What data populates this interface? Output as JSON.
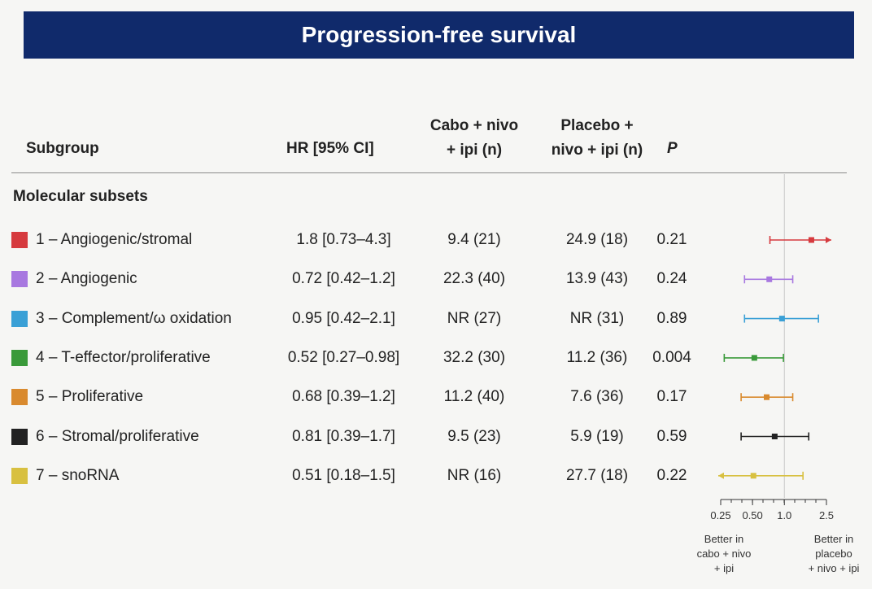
{
  "title": "Progression-free survival",
  "headers": {
    "subgroup": "Subgroup",
    "hr": "HR [95% CI]",
    "cabo_line1": "Cabo + nivo",
    "cabo_line2": "+ ipi (n)",
    "placebo_line1": "Placebo +",
    "placebo_line2": "nivo + ipi (n)",
    "p": "P"
  },
  "section_label": "Molecular subsets",
  "rows": [
    {
      "name": "1 – Angiogenic/stromal",
      "hr": "1.8 [0.73–4.3]",
      "cabo": "9.4 (21)",
      "placebo": "24.9 (18)",
      "p": "0.21",
      "color": "#d63a3e"
    },
    {
      "name": "2 – Angiogenic",
      "hr": "0.72 [0.42–1.2]",
      "cabo": "22.3 (40)",
      "placebo": "13.9 (43)",
      "p": "0.24",
      "color": "#a878e0"
    },
    {
      "name": "3 – Complement/ω oxidation",
      "hr": "0.95 [0.42–2.1]",
      "cabo": "NR (27)",
      "placebo": "NR (31)",
      "p": "0.89",
      "color": "#3aa0d6"
    },
    {
      "name": "4 – T-effector/proliferative",
      "hr": "0.52 [0.27–0.98]",
      "cabo": "32.2 (30)",
      "placebo": "11.2 (36)",
      "p": "0.004",
      "color": "#3a9a3a"
    },
    {
      "name": "5 – Proliferative",
      "hr": "0.68 [0.39–1.2]",
      "cabo": "11.2 (40)",
      "placebo": "7.6 (36)",
      "p": "0.17",
      "color": "#d98a2e"
    },
    {
      "name": "6 – Stromal/proliferative",
      "hr": "0.81 [0.39–1.7]",
      "cabo": "9.5 (23)",
      "placebo": "5.9 (19)",
      "p": "0.59",
      "color": "#222222"
    },
    {
      "name": "7 – snoRNA",
      "hr": "0.51 [0.18–1.5]",
      "cabo": "NR (16)",
      "placebo": "27.7 (18)",
      "p": "0.22",
      "color": "#d8c040"
    }
  ],
  "axis_note_left": [
    "Better in",
    "cabo + nivo",
    "+ ipi"
  ],
  "axis_note_right": [
    "Better in",
    "placebo",
    "+ nivo + ipi"
  ],
  "chart_data": {
    "type": "scatter",
    "scale": "log",
    "reference_line": 1.0,
    "xlim": [
      0.25,
      2.5
    ],
    "xticks": [
      0.25,
      0.5,
      1.0,
      2.5
    ],
    "xtick_labels": [
      "0.25",
      "0.50",
      "1.0",
      "2.5"
    ],
    "series": [
      {
        "hr": 1.8,
        "lo": 0.73,
        "hi": 4.3,
        "arrow_right": true
      },
      {
        "hr": 0.72,
        "lo": 0.42,
        "hi": 1.2
      },
      {
        "hr": 0.95,
        "lo": 0.42,
        "hi": 2.1
      },
      {
        "hr": 0.52,
        "lo": 0.27,
        "hi": 0.98
      },
      {
        "hr": 0.68,
        "lo": 0.39,
        "hi": 1.2
      },
      {
        "hr": 0.81,
        "lo": 0.39,
        "hi": 1.7
      },
      {
        "hr": 0.51,
        "lo": 0.18,
        "hi": 1.5,
        "arrow_left": true
      }
    ]
  }
}
